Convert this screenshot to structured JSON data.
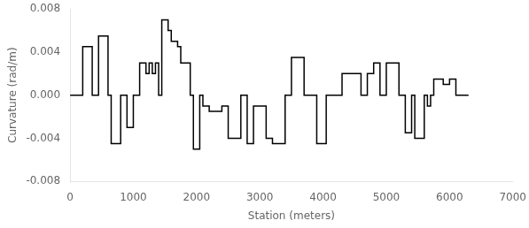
{
  "chart_data": {
    "type": "line",
    "xlabel": "Station (meters)",
    "ylabel": "Curvature (rad/m)",
    "xlim": [
      0,
      7000
    ],
    "ylim": [
      -0.008,
      0.008
    ],
    "xticks": [
      0,
      1000,
      2000,
      3000,
      4000,
      5000,
      6000,
      7000
    ],
    "yticks": [
      -0.008,
      -0.004,
      {
        "value": 0,
        "label": "0.000"
      },
      0.004,
      0.008
    ],
    "color": "#000000",
    "grid": false,
    "x": [
      0,
      200,
      200,
      350,
      350,
      450,
      450,
      600,
      600,
      650,
      650,
      800,
      800,
      900,
      900,
      1000,
      1000,
      1100,
      1100,
      1200,
      1200,
      1250,
      1250,
      1300,
      1300,
      1350,
      1350,
      1400,
      1400,
      1450,
      1450,
      1550,
      1550,
      1600,
      1600,
      1700,
      1700,
      1750,
      1750,
      1900,
      1900,
      1950,
      1950,
      2050,
      2050,
      2100,
      2100,
      2200,
      2200,
      2400,
      2400,
      2500,
      2500,
      2700,
      2700,
      2800,
      2800,
      2900,
      2900,
      3000,
      3000,
      3100,
      3100,
      3200,
      3200,
      3400,
      3400,
      3500,
      3500,
      3700,
      3700,
      3900,
      3900,
      4050,
      4050,
      4300,
      4300,
      4600,
      4600,
      4700,
      4700,
      4800,
      4800,
      4900,
      4900,
      5000,
      5000,
      5100,
      5100,
      5200,
      5200,
      5300,
      5300,
      5400,
      5400,
      5450,
      5450,
      5600,
      5600,
      5650,
      5650,
      5700,
      5700,
      5750,
      5750,
      5900,
      5900,
      6000,
      6000,
      6100,
      6100,
      6300
    ],
    "values": [
      0,
      0,
      0.0045,
      0.0045,
      0,
      0,
      0.0055,
      0.0055,
      0,
      0,
      -0.0045,
      -0.0045,
      0,
      0,
      -0.003,
      -0.003,
      0,
      0,
      0.003,
      0.003,
      0.002,
      0.002,
      0.003,
      0.003,
      0.002,
      0.002,
      0.003,
      0.003,
      0,
      0,
      0.007,
      0.007,
      0.006,
      0.006,
      0.005,
      0.005,
      0.0045,
      0.0045,
      0.003,
      0.003,
      0,
      0,
      -0.005,
      -0.005,
      0,
      0,
      -0.001,
      -0.001,
      -0.0015,
      -0.0015,
      -0.001,
      -0.001,
      -0.004,
      -0.004,
      0,
      0,
      -0.0045,
      -0.0045,
      -0.001,
      -0.001,
      -0.001,
      -0.001,
      -0.004,
      -0.004,
      -0.0045,
      -0.0045,
      0,
      0,
      0.0035,
      0.0035,
      0,
      0,
      -0.0045,
      -0.0045,
      0,
      0,
      0.002,
      0.002,
      0,
      0,
      0.002,
      0.002,
      0.003,
      0.003,
      0,
      0,
      0.003,
      0.003,
      0.003,
      0.003,
      0,
      0,
      -0.0035,
      -0.0035,
      0,
      0,
      -0.004,
      -0.004,
      0,
      0,
      -0.001,
      -0.001,
      0,
      0,
      0.0015,
      0.0015,
      0.001,
      0.001,
      0.0015,
      0.0015,
      0,
      0
    ]
  }
}
